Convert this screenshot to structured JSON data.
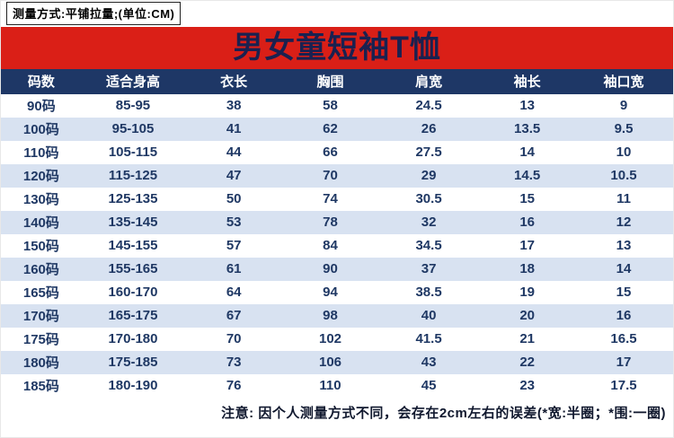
{
  "page": {
    "measure_note": "测量方式:平铺拉量;(单位:CM)",
    "title": "男女童短袖T恤",
    "footer_note": "注意: 因个人测量方式不同，会存在2cm左右的误差(*宽:半圈；*围:一圈)"
  },
  "colors": {
    "banner_red": "#da1f17",
    "header_navy": "#1e3766",
    "alt_row_blue": "#d8e2f1",
    "cell_text_navy": "#1f3864",
    "title_navy": "#1a2150"
  },
  "table": {
    "headers": [
      "码数",
      "适合身高",
      "衣长",
      "胸围",
      "肩宽",
      "袖长",
      "袖口宽"
    ],
    "rows": [
      [
        "90码",
        "85-95",
        "38",
        "58",
        "24.5",
        "13",
        "9"
      ],
      [
        "100码",
        "95-105",
        "41",
        "62",
        "26",
        "13.5",
        "9.5"
      ],
      [
        "110码",
        "105-115",
        "44",
        "66",
        "27.5",
        "14",
        "10"
      ],
      [
        "120码",
        "115-125",
        "47",
        "70",
        "29",
        "14.5",
        "10.5"
      ],
      [
        "130码",
        "125-135",
        "50",
        "74",
        "30.5",
        "15",
        "11"
      ],
      [
        "140码",
        "135-145",
        "53",
        "78",
        "32",
        "16",
        "12"
      ],
      [
        "150码",
        "145-155",
        "57",
        "84",
        "34.5",
        "17",
        "13"
      ],
      [
        "160码",
        "155-165",
        "61",
        "90",
        "37",
        "18",
        "14"
      ],
      [
        "165码",
        "160-170",
        "64",
        "94",
        "38.5",
        "19",
        "15"
      ],
      [
        "170码",
        "165-175",
        "67",
        "98",
        "40",
        "20",
        "16"
      ],
      [
        "175码",
        "170-180",
        "70",
        "102",
        "41.5",
        "21",
        "16.5"
      ],
      [
        "180码",
        "175-185",
        "73",
        "106",
        "43",
        "22",
        "17"
      ],
      [
        "185码",
        "180-190",
        "76",
        "110",
        "45",
        "23",
        "17.5"
      ]
    ]
  }
}
